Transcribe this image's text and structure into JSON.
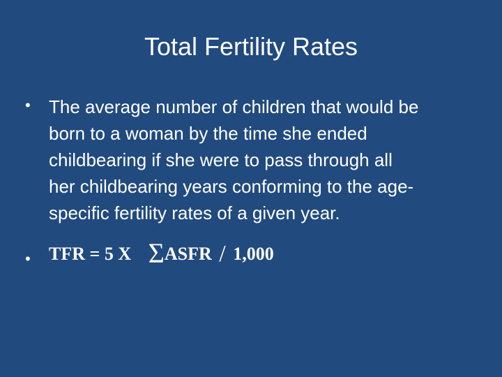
{
  "slide": {
    "title": "Total Fertility Rates",
    "bullet_symbol": "•",
    "definition_lines": [
      "The average number of children that would be",
      "born to a woman by the time she ended",
      "childbearing if she were to pass through all",
      "her childbearing years conforming to the age-",
      "specific fertility rates of a given year."
    ],
    "formula": {
      "lhs": "TFR =  5 X",
      "sigma": "Σ",
      "term": "ASFR",
      "slash": "/",
      "divisor": "1,000"
    }
  },
  "colors": {
    "background": "#214a7e",
    "text": "#ffffff"
  }
}
